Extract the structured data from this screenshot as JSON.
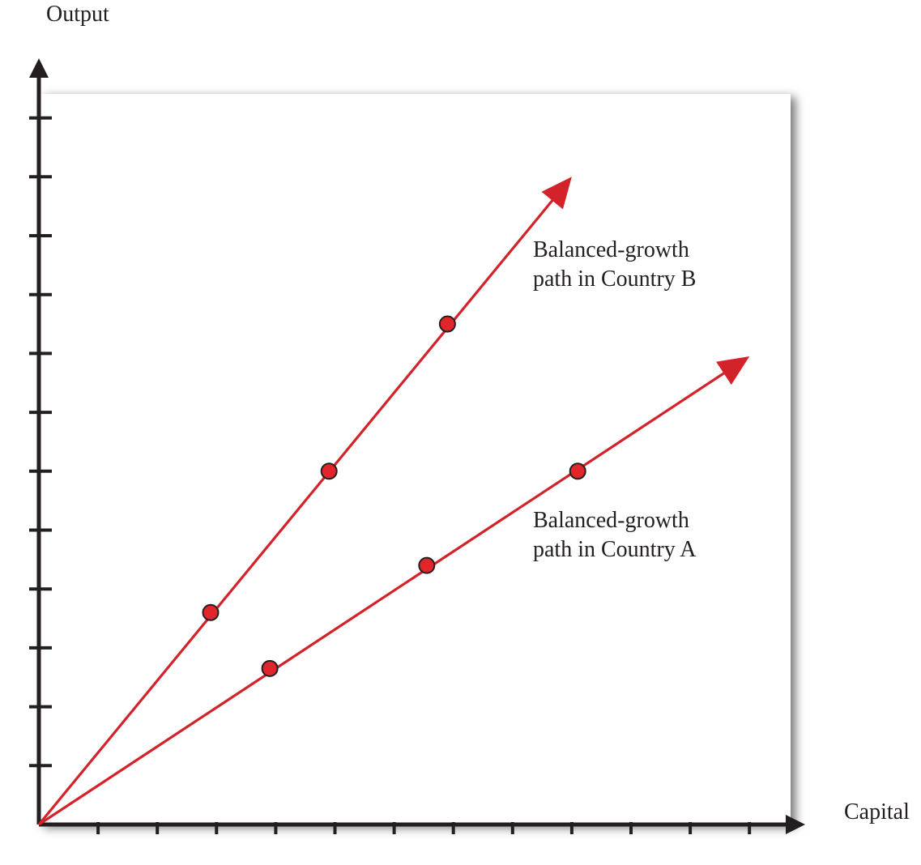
{
  "chart_data": {
    "type": "line",
    "xlabel": "Capital",
    "ylabel": "Output",
    "x_ticks": 12,
    "y_ticks": 12,
    "xlim": [
      0,
      12
    ],
    "ylim": [
      0,
      12.5
    ],
    "grid": false,
    "colors": {
      "line": "#d2232a",
      "marker_fill": "#e0262b",
      "marker_edge": "#231f20",
      "axis": "#231f20",
      "plot_bg": "#ffffff"
    },
    "series": [
      {
        "name": "Balanced-growth path in Country B",
        "label_lines": [
          "Balanced-growth",
          "path in Country B"
        ],
        "start": [
          0,
          0
        ],
        "end": [
          9,
          11
        ],
        "points": [
          [
            2.9,
            3.6
          ],
          [
            4.9,
            6.0
          ],
          [
            6.9,
            8.5
          ]
        ]
      },
      {
        "name": "Balanced-growth path in Country A",
        "label_lines": [
          "Balanced-growth",
          "path in Country A"
        ],
        "start": [
          0,
          0
        ],
        "end": [
          12,
          7.95
        ],
        "points": [
          [
            3.9,
            2.65
          ],
          [
            6.55,
            4.4
          ],
          [
            9.1,
            6.0
          ]
        ]
      }
    ]
  }
}
